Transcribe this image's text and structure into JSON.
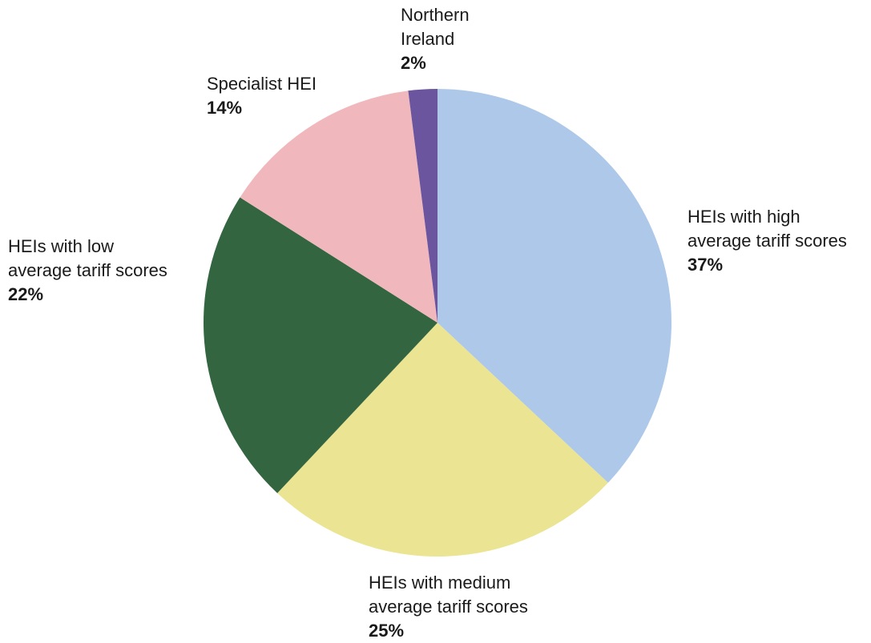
{
  "chart_data": {
    "type": "pie",
    "categories": [
      "HEIs with high average tariff scores",
      "HEIs with medium average tariff scores",
      "HEIs with low average tariff scores",
      "Specialist HEI",
      "Northern Ireland"
    ],
    "values": [
      37,
      25,
      22,
      14,
      2
    ],
    "value_labels": [
      "37%",
      "25%",
      "22%",
      "14%",
      "2%"
    ],
    "colors": [
      "#adc8e8",
      "#ebe492",
      "#336640",
      "#f0b8bd",
      "#6a559e"
    ]
  }
}
